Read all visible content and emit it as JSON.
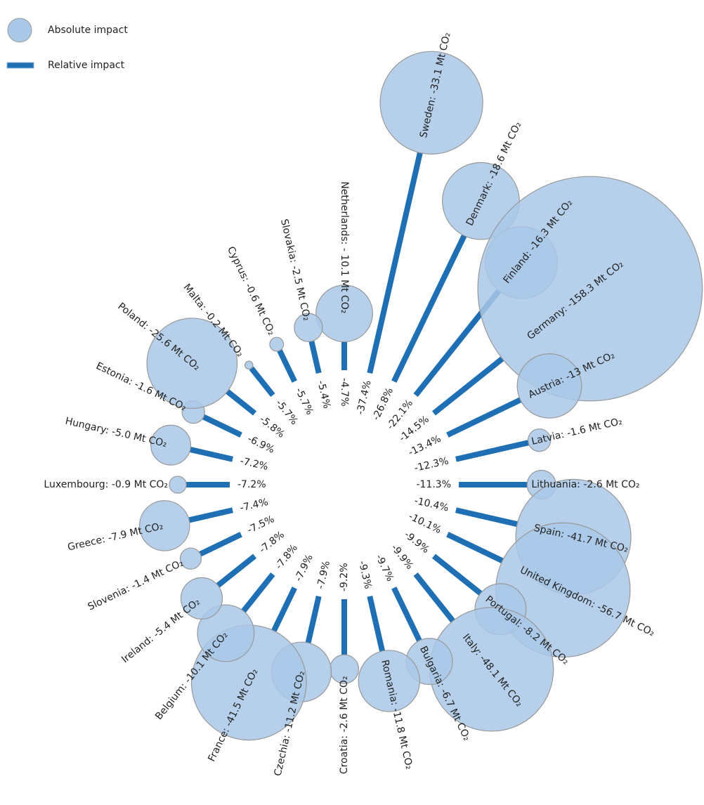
{
  "chart_data": {
    "type": "radial",
    "legend": [
      {
        "name": "Absolute impact",
        "color": "#a9c8e8"
      },
      {
        "name": "Relative impact",
        "color": "#1f6fb4"
      }
    ],
    "series": [
      {
        "name": "Relative impact",
        "color": "#1f6fb4",
        "values": [
          -4.7,
          -37.4,
          -26.8,
          -22.1,
          -14.5,
          -13.4,
          -12.3,
          -11.3,
          -10.4,
          -10.1,
          -9.9,
          -9.9,
          -9.7,
          -9.3,
          -9.2,
          -7.9,
          -7.9,
          -7.8,
          -7.8,
          -7.5,
          -7.4,
          -7.2,
          -7.2,
          -6.9,
          -5.8,
          -5.7,
          -5.7,
          -5.4
        ],
        "value_labels": [
          "-4.7%",
          "-37.4%",
          "-26.8%",
          "-22.1%",
          "-14.5%",
          "-13.4%",
          "-12.3%",
          "-11.3%",
          "-10.4%",
          "-10.1%",
          "-9.9%",
          "-9.9%",
          "-9.7%",
          "-9.3%",
          "-9.2%",
          "-7.9%",
          "-7.9%",
          "-7.8%",
          "-7.8%",
          "-7.5%",
          "-7.4%",
          "-7.2%",
          "-7.2%",
          "-6.9%",
          "-5.8%",
          "-5.7%",
          "-5.7%",
          "-5.4%"
        ]
      },
      {
        "name": "Absolute impact",
        "color": "#a9c8e8",
        "values": [
          -10.1,
          -33.1,
          -18.6,
          -16.3,
          -158.3,
          -13,
          -1.6,
          -2.6,
          -41.7,
          -56.7,
          -8.2,
          -48.1,
          -6.7,
          -11.8,
          -2.6,
          -11.2,
          -41.5,
          -10.1,
          -5.4,
          -1.4,
          -7.9,
          -0.9,
          -5.0,
          -1.6,
          -25.6,
          -0.2,
          -0.6,
          -2.5
        ],
        "value_labels": [
          "Netherlands: - 10.1 Mt CO₂",
          "Sweden: -33.1 Mt CO₂",
          "Denmark: -18.6 Mt CO₂",
          "Finland: -16.3 Mt CO₂",
          "Germany: -158.3 Mt CO₂",
          "Austria: -13 Mt CO₂",
          "Latvia: -1.6 Mt CO₂",
          "Lithuania: -2.6 Mt CO₂",
          "Spain: -41.7 Mt CO₂",
          "United Kingdom: -56.7 Mt CO₂",
          "Portugal: -8.2 Mt CO₂",
          "Italy: -48.1 Mt CO₂",
          "Bulgaria: -6.7 Mt CO₂",
          "Romania: -11.8 Mt CO₂",
          "Croatia: -2.6 Mt CO₂",
          "Czechia: -11.2 Mt CO₂",
          "France: -41.5 Mt CO₂",
          "Belgium: -10.1 Mt CO₂",
          "Ireland: -5.4 Mt CO₂",
          "Slovenia: -1.4 Mt CO₂",
          "Greece: -7.9 Mt CO₂",
          "Luxembourg: -0.9 Mt CO₂",
          "Hungary: -5.0 Mt CO₂",
          "Estonia: -1.6 Mt CO₂",
          "Poland: -25.6 Mt CO₂",
          "Malta: -0.2 Mt CO₂",
          "Cyprus: -0.6 Mt CO₂",
          "Slovakia: -2.5 Mt CO₂"
        ]
      }
    ]
  }
}
